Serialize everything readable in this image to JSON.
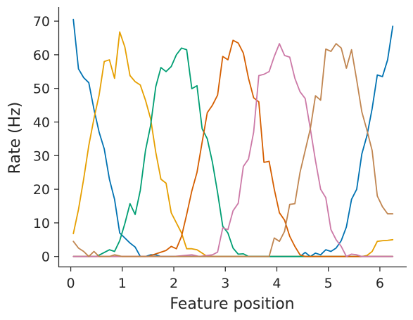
{
  "chart_data": {
    "type": "line",
    "title": "",
    "xlabel": "Feature position",
    "ylabel": "Rate (Hz)",
    "xlim": [
      -0.24,
      6.52
    ],
    "ylim": [
      -3.2,
      74.2
    ],
    "xticks": [
      0,
      1,
      2,
      3,
      4,
      5,
      6
    ],
    "yticks": [
      0,
      10,
      20,
      30,
      40,
      50,
      60,
      70
    ],
    "grid": false,
    "legend": "none",
    "series": [
      {
        "color": "#0072b2",
        "x": [
          0.05,
          0.15,
          0.25,
          0.35,
          0.45,
          0.55,
          0.65,
          0.75,
          0.85,
          0.95,
          1.05,
          1.15,
          1.25,
          1.35,
          1.45,
          1.55,
          1.65,
          1.75,
          1.85,
          1.95,
          2.5,
          3.0,
          3.5,
          4.0,
          4.45,
          4.55,
          4.65,
          4.75,
          4.85,
          4.95,
          5.05,
          5.15,
          5.25,
          5.35,
          5.45,
          5.55,
          5.65,
          5.75,
          5.85,
          5.95,
          6.05,
          6.15,
          6.25
        ],
        "values": [
          70.5,
          55.8,
          53.2,
          51.7,
          43.8,
          37.0,
          32.0,
          23.0,
          17.0,
          7.0,
          5.5,
          4.0,
          2.8,
          0.0,
          0.0,
          0.5,
          0.5,
          0.0,
          0.0,
          0.0,
          0.0,
          0.0,
          0.0,
          0.0,
          0.0,
          1.2,
          0.0,
          1.0,
          0.5,
          2.0,
          1.5,
          2.5,
          4.7,
          8.8,
          17.0,
          20.0,
          30.5,
          36.0,
          44.0,
          54.0,
          53.5,
          58.5,
          68.5
        ]
      },
      {
        "color": "#e69f00",
        "x": [
          0.05,
          0.15,
          0.25,
          0.35,
          0.45,
          0.55,
          0.65,
          0.75,
          0.85,
          0.95,
          1.05,
          1.15,
          1.25,
          1.35,
          1.45,
          1.55,
          1.65,
          1.75,
          1.85,
          1.95,
          2.05,
          2.15,
          2.25,
          2.35,
          2.45,
          2.55,
          2.65,
          2.75,
          3.0,
          3.5,
          4.0,
          4.5,
          5.0,
          5.5,
          5.65,
          5.75,
          5.85,
          5.95,
          6.05,
          6.15,
          6.25
        ],
        "values": [
          6.8,
          14.0,
          23.0,
          33.0,
          41.0,
          48.0,
          58.0,
          58.5,
          53.0,
          66.8,
          62.3,
          53.8,
          52.0,
          51.0,
          46.5,
          41.0,
          31.0,
          23.0,
          21.8,
          13.0,
          10.0,
          7.0,
          2.3,
          2.3,
          2.0,
          1.0,
          0.0,
          0.0,
          0.0,
          0.0,
          0.0,
          0.0,
          0.0,
          0.0,
          0.0,
          0.3,
          1.5,
          4.5,
          4.7,
          4.8,
          5.0
        ]
      },
      {
        "color": "#009e73",
        "x": [
          0.05,
          0.5,
          0.75,
          0.85,
          0.95,
          1.05,
          1.15,
          1.25,
          1.35,
          1.45,
          1.55,
          1.65,
          1.75,
          1.85,
          1.95,
          2.05,
          2.15,
          2.25,
          2.35,
          2.45,
          2.55,
          2.65,
          2.75,
          2.85,
          2.95,
          3.05,
          3.15,
          3.25,
          3.35,
          3.45,
          3.55,
          4.0,
          4.5,
          5.0,
          5.5,
          6.0,
          6.25
        ],
        "values": [
          0.0,
          0.0,
          2.0,
          1.5,
          4.7,
          9.8,
          15.7,
          12.5,
          19.7,
          31.5,
          39.0,
          50.5,
          56.2,
          55.0,
          56.5,
          60.0,
          62.0,
          61.5,
          49.9,
          50.8,
          38.0,
          35.0,
          28.0,
          19.0,
          9.0,
          7.0,
          2.5,
          0.7,
          0.8,
          0.0,
          0.0,
          0.0,
          0.0,
          0.0,
          0.0,
          0.0,
          0.0
        ]
      },
      {
        "color": "#d55e00",
        "x": [
          0.05,
          1.0,
          1.5,
          1.85,
          1.95,
          2.05,
          2.15,
          2.25,
          2.35,
          2.45,
          2.55,
          2.65,
          2.75,
          2.85,
          2.95,
          3.05,
          3.15,
          3.25,
          3.35,
          3.45,
          3.55,
          3.65,
          3.75,
          3.85,
          3.95,
          4.05,
          4.15,
          4.25,
          4.35,
          4.45,
          4.55,
          5.0,
          5.5,
          6.0,
          6.25
        ],
        "values": [
          0.0,
          0.0,
          0.0,
          1.8,
          3.0,
          2.3,
          6.0,
          12.5,
          19.5,
          25.0,
          34.0,
          42.8,
          45.0,
          48.0,
          59.5,
          58.5,
          64.3,
          63.5,
          60.5,
          53.0,
          47.2,
          46.0,
          28.0,
          28.3,
          20.0,
          13.0,
          10.8,
          6.0,
          3.0,
          0.5,
          0.0,
          0.0,
          0.0,
          0.0,
          0.0
        ]
      },
      {
        "color": "#cc79a7",
        "x": [
          0.05,
          1.0,
          2.0,
          2.35,
          2.5,
          2.75,
          2.85,
          2.95,
          3.05,
          3.15,
          3.25,
          3.35,
          3.45,
          3.55,
          3.65,
          3.75,
          3.85,
          3.95,
          4.05,
          4.15,
          4.25,
          4.35,
          4.45,
          4.55,
          4.65,
          4.75,
          4.85,
          4.95,
          5.05,
          5.15,
          5.25,
          5.35,
          5.45,
          5.55,
          5.65,
          5.75,
          6.0,
          6.25
        ],
        "values": [
          0.0,
          0.0,
          0.0,
          0.5,
          0.0,
          0.5,
          1.3,
          8.5,
          8.0,
          13.6,
          15.8,
          26.8,
          29.0,
          37.0,
          53.8,
          54.2,
          55.0,
          59.5,
          63.3,
          59.8,
          59.3,
          53.0,
          49.0,
          47.0,
          38.0,
          28.5,
          20.0,
          17.5,
          8.0,
          5.0,
          3.0,
          0.0,
          0.7,
          0.5,
          0.0,
          0.0,
          0.0,
          0.0
        ]
      },
      {
        "color": "#c08550",
        "x": [
          0.05,
          0.15,
          0.25,
          0.35,
          0.45,
          0.55,
          0.75,
          0.85,
          1.0,
          2.0,
          3.0,
          3.8,
          3.85,
          3.95,
          4.05,
          4.15,
          4.25,
          4.35,
          4.45,
          4.55,
          4.65,
          4.75,
          4.85,
          4.95,
          5.05,
          5.15,
          5.25,
          5.35,
          5.45,
          5.55,
          5.65,
          5.75,
          5.85,
          5.95,
          6.05,
          6.15,
          6.25
        ],
        "values": [
          4.5,
          2.5,
          1.5,
          0.0,
          1.5,
          0.0,
          0.0,
          0.5,
          0.0,
          0.0,
          0.0,
          0.0,
          0.0,
          5.5,
          4.5,
          7.5,
          15.5,
          15.7,
          25.0,
          31.5,
          38.0,
          47.8,
          46.5,
          61.7,
          61.0,
          63.3,
          62.0,
          56.0,
          61.5,
          52.5,
          43.0,
          37.5,
          31.5,
          18.0,
          14.8,
          12.7,
          12.7
        ]
      }
    ]
  }
}
